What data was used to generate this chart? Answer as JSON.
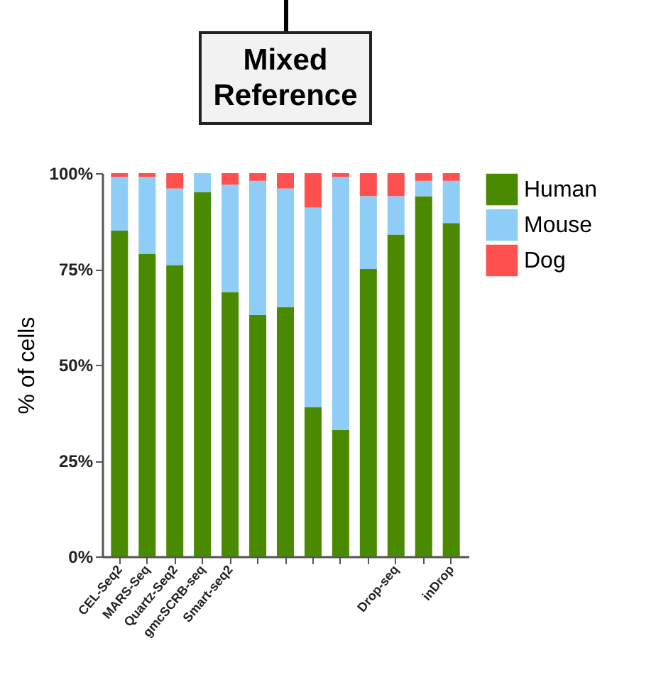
{
  "chart_data": {
    "type": "bar",
    "title": "Mixed Reference",
    "ylabel": "% of cells",
    "stacked": true,
    "categories": [
      "CEL-Seq2",
      "MARS-Seq",
      "Quartz-Seq2",
      "gmcSCRB-seq",
      "Smart-seq2",
      null,
      null,
      null,
      null,
      null,
      "Drop-seq",
      null,
      "inDrop"
    ],
    "series": [
      {
        "name": "Human",
        "color": "#4a8a00",
        "values": [
          85,
          79,
          76,
          95,
          69,
          63,
          65,
          39,
          33,
          75,
          84,
          94,
          87
        ]
      },
      {
        "name": "Mouse",
        "color": "#8ecdf5",
        "values": [
          14,
          20,
          20,
          5,
          28,
          35,
          31,
          52,
          66,
          19,
          10,
          4,
          11
        ]
      },
      {
        "name": "Dog",
        "color": "#ff5050",
        "values": [
          1,
          1,
          4,
          0,
          3,
          2,
          4,
          9,
          1,
          6,
          6,
          2,
          2
        ]
      }
    ],
    "ylim": [
      0,
      100
    ],
    "yticks": [
      {
        "value": 0,
        "label": "0%"
      },
      {
        "value": 25,
        "label": "25%"
      },
      {
        "value": 50,
        "label": "50%"
      },
      {
        "value": 75,
        "label": "75%"
      },
      {
        "value": 100,
        "label": "100%"
      }
    ],
    "grid": false,
    "legend": "right"
  }
}
